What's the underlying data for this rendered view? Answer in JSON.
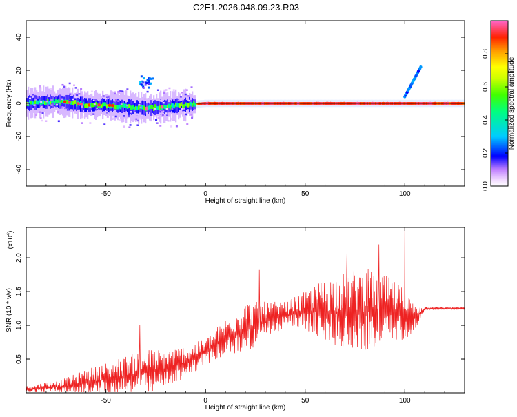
{
  "title": "C2E1.2026.048.09.23.R03",
  "chart_data": [
    {
      "type": "heatmap",
      "xlabel": "Height of straight line (km)",
      "ylabel": "Frequency (Hz)",
      "xlim": [
        -90,
        130
      ],
      "ylim": [
        -50,
        50
      ],
      "xticks": [
        -50,
        0,
        50,
        100
      ],
      "yticks": [
        -40,
        -20,
        0,
        20,
        40
      ],
      "colorbar": {
        "label": "Normalized spectral amplitude",
        "ticks": [
          0.0,
          0.2,
          0.4,
          0.6,
          0.8
        ],
        "tick_labels": [
          "0.0",
          "0.2",
          "0.4",
          "0.6",
          "0.8"
        ],
        "range": [
          0,
          1
        ]
      },
      "ridge": {
        "x": [
          -90,
          -80,
          -70,
          -60,
          -50,
          -40,
          -30,
          -20,
          -10,
          0,
          10,
          20,
          30,
          40,
          50,
          60,
          70,
          80,
          90,
          100,
          110,
          120,
          130
        ],
        "y": [
          0,
          1,
          1,
          -1,
          -1,
          -2,
          -3,
          -2,
          -1,
          0,
          0,
          0,
          0,
          0,
          0,
          0,
          0,
          0,
          0,
          0,
          0,
          0,
          0
        ],
        "amplitude": [
          0.55,
          0.6,
          0.6,
          0.55,
          0.55,
          0.55,
          0.55,
          0.6,
          0.75,
          0.95,
          0.95,
          0.95,
          0.95,
          0.95,
          0.95,
          0.95,
          0.95,
          0.95,
          0.95,
          0.95,
          0.95,
          0.9,
          0.9
        ]
      },
      "branch": {
        "x": [
          100,
          108
        ],
        "y": [
          4,
          22
        ],
        "amplitude": 0.25
      },
      "blob": {
        "x": [
          -34,
          -27
        ],
        "y": [
          10,
          17
        ],
        "amplitude": 0.25
      }
    },
    {
      "type": "line",
      "xlabel": "Height of straight line (km)",
      "ylabel": "SNR (10 * v/v)",
      "multiplier_label": "(x10",
      "multiplier_exponent": "4",
      "multiplier_close": ")",
      "xlim": [
        -90,
        130
      ],
      "ylim": [
        0,
        2.45
      ],
      "xticks": [
        -50,
        0,
        50,
        100
      ],
      "yticks": [
        0.5,
        1.0,
        1.5,
        2.0
      ],
      "ytick_labels": [
        "0.5",
        "1.0",
        "1.5",
        "2.0"
      ],
      "color": "#ee2222",
      "series": [
        {
          "x": [
            -90,
            -80,
            -70,
            -60,
            -50,
            -40,
            -30,
            -20,
            -10,
            0,
            10,
            20,
            30,
            40,
            50,
            60,
            70,
            80,
            90,
            100,
            105,
            110,
            120,
            130
          ],
          "y": [
            0.05,
            0.08,
            0.1,
            0.15,
            0.2,
            0.25,
            0.3,
            0.35,
            0.45,
            0.6,
            0.8,
            0.95,
            1.05,
            1.15,
            1.2,
            1.2,
            1.2,
            1.2,
            1.2,
            1.15,
            1.1,
            1.25,
            1.25,
            1.25
          ],
          "spread": [
            0.05,
            0.08,
            0.12,
            0.2,
            0.25,
            0.3,
            0.35,
            0.3,
            0.25,
            0.2,
            0.3,
            0.4,
            0.3,
            0.2,
            0.3,
            0.5,
            0.6,
            0.65,
            0.55,
            0.4,
            0.2,
            0.03,
            0.02,
            0.02
          ]
        }
      ],
      "peaks": [
        {
          "x": -33,
          "y": 1.0
        },
        {
          "x": 27,
          "y": 1.82
        },
        {
          "x": 71,
          "y": 2.1
        },
        {
          "x": 87,
          "y": 2.2
        },
        {
          "x": 100,
          "y": 2.45
        }
      ]
    }
  ]
}
